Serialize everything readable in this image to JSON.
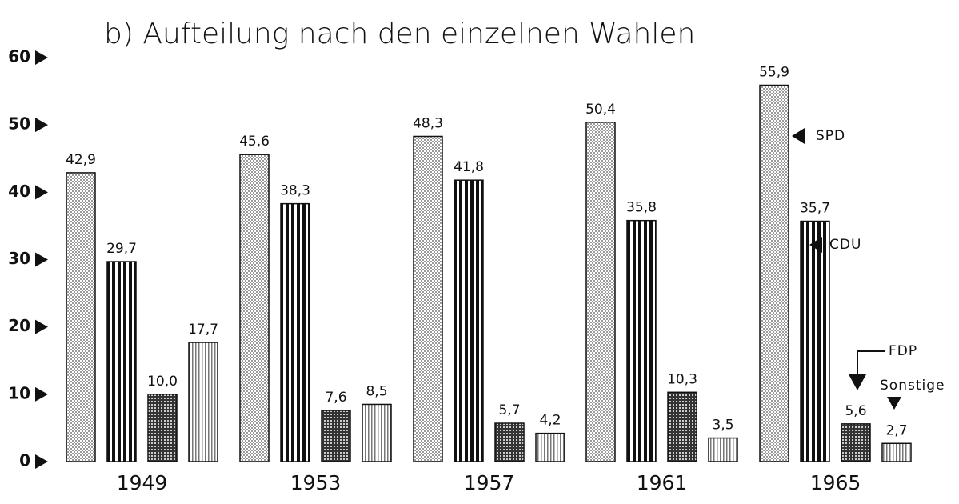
{
  "chart_data": {
    "type": "bar",
    "title": "b) Aufteilung nach den einzelnen Wahlen",
    "categories": [
      "1949",
      "1953",
      "1957",
      "1961",
      "1965"
    ],
    "series": [
      {
        "name": "SPD",
        "color": "#9a9a9a",
        "values": [
          42.9,
          45.6,
          48.3,
          50.4,
          55.9
        ],
        "value_labels": [
          "42,9",
          "45,6",
          "48,3",
          "50,4",
          "55,9"
        ]
      },
      {
        "name": "CDU",
        "color": "#111111",
        "values": [
          29.7,
          38.3,
          41.8,
          35.8,
          35.7
        ],
        "value_labels": [
          "29,7",
          "38,3",
          "41,8",
          "35,8",
          "35,7"
        ]
      },
      {
        "name": "FDP",
        "color": "#333333",
        "values": [
          10.0,
          7.6,
          5.7,
          10.3,
          5.6
        ],
        "value_labels": [
          "10,0",
          "7,6",
          "5,7",
          "10,3",
          "5,6"
        ]
      },
      {
        "name": "Sonstige",
        "color": "#777777",
        "values": [
          17.7,
          8.5,
          4.2,
          3.5,
          2.7
        ],
        "value_labels": [
          "17,7",
          "8,5",
          "4,2",
          "3,5",
          "2,7"
        ]
      }
    ],
    "ylim": [
      0,
      60
    ],
    "yticks": [
      0,
      10,
      20,
      30,
      40,
      50,
      60
    ]
  }
}
